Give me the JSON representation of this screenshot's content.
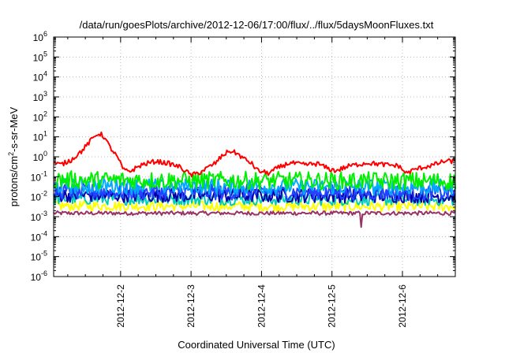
{
  "chart_data": {
    "type": "line",
    "title": "/data/run/goesPlots/archive/2012-12-06/17:00/flux/../flux/5daysMoonFluxes.txt",
    "xlabel": "Coordinated Universal Time (UTC)",
    "ylabel": "protons/cm²-s-sr-MeV",
    "ylabel_parts": [
      "protons/cm",
      "2",
      "-s-sr-MeV"
    ],
    "yscale": "log",
    "ylim": [
      1e-06,
      1000000.0
    ],
    "y_tick_exponents": [
      -6,
      -5,
      -4,
      -3,
      -2,
      -1,
      0,
      1,
      2,
      3,
      4,
      5,
      6
    ],
    "y_tick_base": "10",
    "x_range_days": [
      1.05,
      6.75
    ],
    "x_ticks": [
      {
        "label": "2012-12-2",
        "day": 2
      },
      {
        "label": "2012-12-3",
        "day": 3
      },
      {
        "label": "2012-12-4",
        "day": 4
      },
      {
        "label": "2012-12-5",
        "day": 5
      },
      {
        "label": "2012-12-6",
        "day": 6
      }
    ],
    "grid": true,
    "legend": "none",
    "series": [
      {
        "color": "#ff0000",
        "noise": 0.12,
        "points": [
          [
            1.05,
            0.5
          ],
          [
            1.15,
            0.4
          ],
          [
            1.3,
            0.7
          ],
          [
            1.45,
            2
          ],
          [
            1.6,
            8
          ],
          [
            1.68,
            15
          ],
          [
            1.75,
            12
          ],
          [
            1.85,
            3
          ],
          [
            1.95,
            1
          ],
          [
            2.05,
            0.2
          ],
          [
            2.15,
            0.2
          ],
          [
            2.3,
            0.4
          ],
          [
            2.5,
            0.6
          ],
          [
            2.7,
            0.45
          ],
          [
            2.85,
            0.3
          ],
          [
            3.0,
            0.12
          ],
          [
            3.1,
            0.15
          ],
          [
            3.25,
            0.3
          ],
          [
            3.35,
            0.5
          ],
          [
            3.45,
            1.2
          ],
          [
            3.55,
            2
          ],
          [
            3.65,
            1.5
          ],
          [
            3.75,
            0.8
          ],
          [
            3.85,
            0.5
          ],
          [
            3.95,
            0.2
          ],
          [
            4.1,
            0.15
          ],
          [
            4.25,
            0.3
          ],
          [
            4.4,
            0.5
          ],
          [
            4.6,
            0.4
          ],
          [
            4.8,
            0.45
          ],
          [
            4.95,
            0.25
          ],
          [
            5.05,
            0.2
          ],
          [
            5.25,
            0.35
          ],
          [
            5.5,
            0.5
          ],
          [
            5.75,
            0.4
          ],
          [
            5.95,
            0.35
          ],
          [
            6.05,
            0.15
          ],
          [
            6.2,
            0.25
          ],
          [
            6.45,
            0.4
          ],
          [
            6.6,
            0.6
          ],
          [
            6.75,
            0.6
          ]
        ]
      },
      {
        "color": "#00ee00",
        "noise": 0.45,
        "points": [
          [
            1.05,
            0.07
          ],
          [
            6.75,
            0.06
          ]
        ]
      },
      {
        "color": "#00aaff",
        "noise": 0.4,
        "points": [
          [
            1.05,
            0.035
          ],
          [
            6.75,
            0.03
          ]
        ]
      },
      {
        "color": "#2244ff",
        "noise": 0.4,
        "points": [
          [
            1.05,
            0.018
          ],
          [
            6.75,
            0.016
          ]
        ]
      },
      {
        "color": "#0000aa",
        "noise": 0.35,
        "points": [
          [
            1.05,
            0.012
          ],
          [
            6.75,
            0.011
          ]
        ]
      },
      {
        "color": "#00ccbb",
        "noise": 0.3,
        "points": [
          [
            1.05,
            0.008
          ],
          [
            6.75,
            0.007
          ]
        ]
      },
      {
        "color": "#ffff00",
        "noise": 0.25,
        "points": [
          [
            1.05,
            0.0035
          ],
          [
            6.75,
            0.0032
          ]
        ]
      },
      {
        "color": "#993366",
        "noise": 0.1,
        "points": [
          [
            1.05,
            0.0015
          ],
          [
            6.75,
            0.0015
          ]
        ],
        "dip": {
          "day": 5.42,
          "value": 0.0003
        }
      }
    ]
  }
}
